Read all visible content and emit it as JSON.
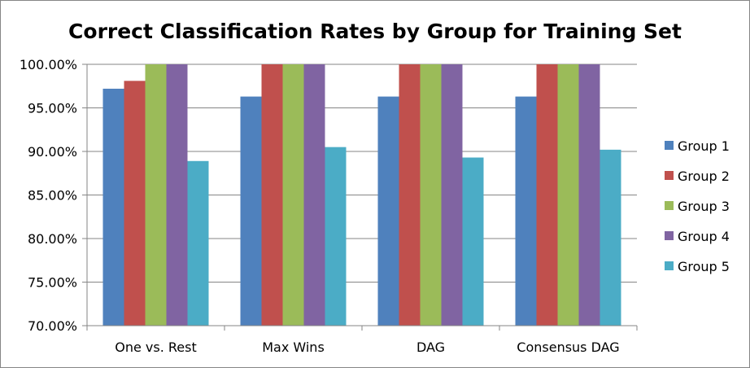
{
  "chart_data": {
    "type": "bar",
    "title": "Correct Classification Rates by Group for Training Set",
    "xlabel": "",
    "ylabel": "",
    "categories": [
      "One vs. Rest",
      "Max Wins",
      "DAG",
      "Consensus DAG"
    ],
    "ylim": [
      0.7,
      1.0
    ],
    "yticks": [
      0.7,
      0.75,
      0.8,
      0.85,
      0.9,
      0.95,
      1.0
    ],
    "ytick_labels": [
      "70.00%",
      "75.00%",
      "80.00%",
      "85.00%",
      "90.00%",
      "95.00%",
      "100.00%"
    ],
    "grid": true,
    "legend_position": "right",
    "series": [
      {
        "name": "Group 1",
        "color": "#4F81BD",
        "values": [
          0.972,
          0.963,
          0.963,
          0.963
        ]
      },
      {
        "name": "Group 2",
        "color": "#C0504D",
        "values": [
          0.981,
          1.0,
          1.0,
          1.0
        ]
      },
      {
        "name": "Group 3",
        "color": "#9BBB59",
        "values": [
          1.0,
          1.0,
          1.0,
          1.0
        ]
      },
      {
        "name": "Group 4",
        "color": "#8064A2",
        "values": [
          1.0,
          1.0,
          1.0,
          1.0
        ]
      },
      {
        "name": "Group 5",
        "color": "#4BACC6",
        "values": [
          0.889,
          0.905,
          0.893,
          0.902
        ]
      }
    ]
  }
}
